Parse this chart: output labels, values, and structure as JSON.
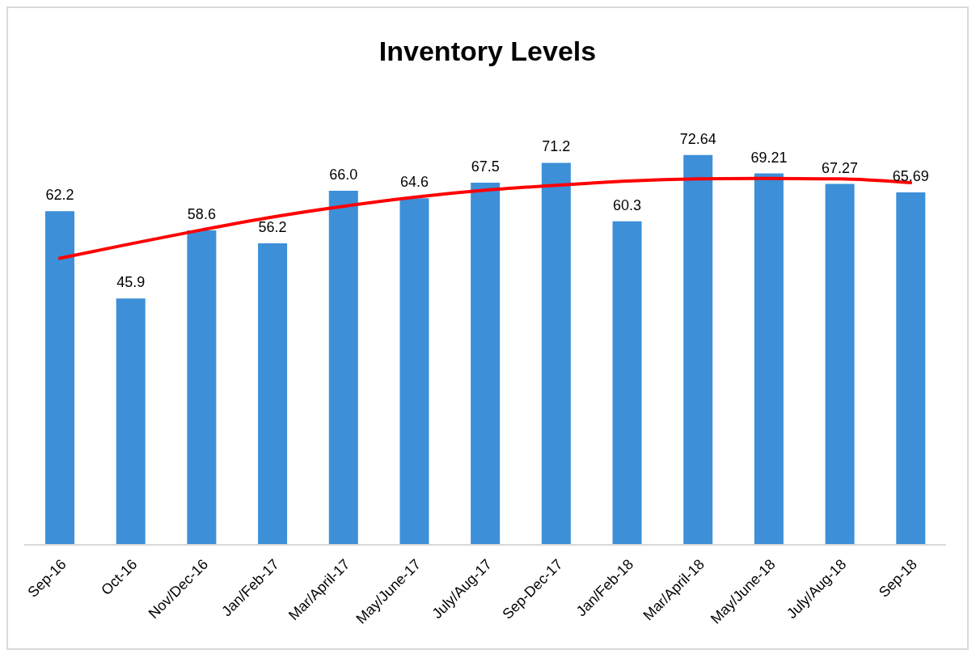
{
  "chart_data": {
    "type": "bar",
    "title": "Inventory Levels",
    "categories": [
      "Sep-16",
      "Oct-16",
      "Nov/Dec-16",
      "Jan/Feb-17",
      "Mar/April-17",
      "May/June-17",
      "July/Aug-17",
      "Sep-Dec-17",
      "Jan/Feb-18",
      "Mar/April-18",
      "May/June-18",
      "July/Aug-18",
      "Sep-18"
    ],
    "series": [
      {
        "color": "#3d8fd8",
        "values": [
          62.2,
          45.9,
          58.6,
          56.2,
          66.0,
          64.6,
          67.5,
          71.2,
          60.3,
          72.64,
          69.21,
          67.27,
          65.69
        ],
        "value_labels": [
          "62.2",
          "45.9",
          "58.6",
          "56.2",
          "66.0",
          "64.6",
          "67.5",
          "71.2",
          "60.3",
          "72.64",
          "69.21",
          "67.27",
          "65.69"
        ]
      },
      {
        "type": "line",
        "color": "#ff0000",
        "x": [
          "Sep-16",
          "Oct-16",
          "Nov/Dec-16",
          "Jan/Feb-17",
          "Mar/April-17",
          "May/June-17",
          "July/Aug-17",
          "Sep-Dec-17",
          "Jan/Feb-18",
          "Mar/April-18",
          "May/June-18",
          "July/Aug-18",
          "Sep-18"
        ],
        "values": [
          53.4,
          56.1,
          58.7,
          61.1,
          63.1,
          64.8,
          66.1,
          67.0,
          67.8,
          68.2,
          68.3,
          68.2,
          67.5
        ]
      }
    ],
    "grid": false,
    "legend": false,
    "marker": "none",
    "line_style": "solid"
  }
}
